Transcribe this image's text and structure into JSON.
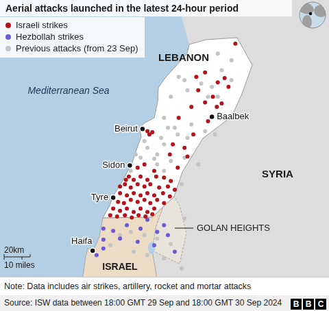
{
  "chart_data": {
    "type": "scatter",
    "title": "Aerial attacks launched in the latest 24-hour period",
    "xlim": [
      34.07,
      37.38
    ],
    "ylim": [
      32.27,
      35.03
    ],
    "tick_labels": false,
    "grid": false,
    "legend": "top-left",
    "series": [
      {
        "name": "Israeli strikes",
        "color": "#b5121b",
        "marker": "circle",
        "x": [
          36.45,
          36.14,
          36.05,
          36.34,
          36.27,
          36.38,
          36.22,
          36.14,
          36.31,
          36.26,
          36.0,
          35.87,
          36.02,
          35.81,
          35.93,
          35.78,
          35.96,
          35.86,
          36.17,
          36.07,
          35.55,
          35.57,
          35.6,
          35.45,
          35.52,
          35.62,
          35.33,
          35.36,
          35.41,
          35.48,
          35.55,
          35.64,
          35.72,
          35.79,
          35.27,
          35.32,
          35.38,
          35.45,
          35.52,
          35.58,
          35.67,
          35.76,
          35.83,
          35.27,
          35.34,
          35.41,
          35.48,
          35.55,
          35.62,
          35.71,
          35.78,
          35.25,
          35.31,
          35.38,
          35.45,
          35.52,
          35.58,
          35.65,
          35.72,
          35.2,
          35.27,
          35.34,
          35.41,
          35.48,
          35.55,
          35.62,
          35.17,
          35.24,
          35.32,
          35.39,
          35.46,
          35.53,
          35.6
        ],
        "y": [
          34.66,
          34.4,
          34.36,
          34.35,
          34.31,
          34.27,
          34.18,
          34.13,
          34.12,
          34.09,
          34.09,
          33.99,
          33.84,
          33.75,
          33.72,
          33.66,
          33.64,
          33.54,
          33.96,
          34.24,
          33.87,
          33.84,
          33.86,
          33.54,
          33.57,
          33.51,
          33.43,
          33.46,
          33.43,
          33.46,
          33.43,
          33.46,
          33.45,
          33.42,
          33.37,
          33.39,
          33.36,
          33.39,
          33.37,
          33.39,
          33.36,
          33.37,
          33.34,
          33.31,
          33.29,
          33.31,
          33.29,
          33.31,
          33.29,
          33.31,
          33.28,
          33.23,
          33.22,
          33.25,
          33.23,
          33.25,
          33.22,
          33.25,
          33.22,
          33.17,
          33.15,
          33.17,
          33.14,
          33.17,
          33.14,
          33.17,
          33.11,
          33.1,
          33.11,
          33.09,
          33.11,
          33.1,
          33.12
        ]
      },
      {
        "name": "Hezbollah strikes",
        "color": "#6b5ad6",
        "marker": "circle",
        "x": [
          35.1,
          35.2,
          35.34,
          35.48,
          35.55,
          35.65,
          35.72,
          35.1,
          35.27,
          35.45,
          35.62,
          35.76,
          35.1,
          35.83,
          35.03
        ],
        "y": [
          32.99,
          32.97,
          33.02,
          32.99,
          33.07,
          32.96,
          33.02,
          32.89,
          32.9,
          32.87,
          32.84,
          32.93,
          32.81,
          32.78,
          32.75
        ]
      },
      {
        "name": "Previous attacks (from 23 Sep)",
        "color": "#c4c4c4",
        "marker": "circle",
        "x": [
          36.27,
          35.87,
          36.41,
          35.96,
          35.79,
          35.72,
          35.83,
          35.69,
          35.86,
          36.0,
          36.14,
          36.24,
          35.93,
          35.79,
          35.65,
          35.55,
          35.65,
          35.72,
          36.07,
          35.96,
          35.76,
          35.52,
          35.43,
          35.62,
          35.48,
          35.38,
          35.9,
          35.72,
          35.38,
          35.27,
          35.52,
          35.65,
          35.79,
          35.17,
          35.41,
          35.55,
          35.72,
          35.9,
          35.93,
          36.17,
          36.27,
          36.41,
          36.31,
          36.21,
          36.1,
          35.93
        ],
        "y": [
          34.57,
          34.36,
          34.51,
          34.24,
          34.18,
          33.99,
          33.9,
          33.81,
          33.84,
          33.93,
          33.87,
          33.84,
          33.63,
          33.6,
          33.66,
          33.72,
          33.57,
          33.75,
          33.57,
          33.81,
          33.9,
          33.78,
          33.66,
          33.62,
          33.63,
          33.51,
          33.39,
          33.51,
          32.96,
          32.93,
          32.93,
          32.9,
          32.85,
          32.84,
          32.78,
          32.75,
          32.72,
          32.63,
          33.08,
          34.18,
          34.18,
          34.33,
          34.42,
          34.27,
          34.3,
          34.33
        ]
      }
    ],
    "places": [
      {
        "name": "Beirut",
        "x": 35.5,
        "y": 33.89
      },
      {
        "name": "Baalbek",
        "x": 36.21,
        "y": 34.0
      },
      {
        "name": "Sidon",
        "x": 35.37,
        "y": 33.56
      },
      {
        "name": "Tyre",
        "x": 35.2,
        "y": 33.27
      },
      {
        "name": "Haifa",
        "x": 34.99,
        "y": 32.79
      }
    ],
    "region_labels": [
      "LEBANON",
      "SYRIA",
      "ISRAEL",
      "Mediterranean Sea",
      "GOLAN HEIGHTS"
    ],
    "scale_bar": [
      "20km",
      "10 miles"
    ],
    "note": "Note: Data includes air strikes, artillery, rocket and mortar attacks",
    "source": "Source: ISW data between 18:00 GMT 29 Sep and 18:00 GMT 30 Sep 2024",
    "logo": "BBC"
  }
}
